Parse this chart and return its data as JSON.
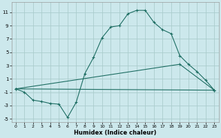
{
  "xlabel": "Humidex (Indice chaleur)",
  "bg_color": "#cce8ec",
  "grid_color": "#aacccc",
  "line_color": "#1a6b60",
  "xlim": [
    -0.5,
    23.5
  ],
  "ylim": [
    -5.5,
    12.5
  ],
  "xticks": [
    0,
    1,
    2,
    3,
    4,
    5,
    6,
    7,
    8,
    9,
    10,
    11,
    12,
    13,
    14,
    15,
    16,
    17,
    18,
    19,
    20,
    21,
    22,
    23
  ],
  "yticks": [
    -5,
    -3,
    -1,
    1,
    3,
    5,
    7,
    9,
    11
  ],
  "line1_x": [
    0,
    1,
    2,
    3,
    4,
    5,
    6,
    7,
    8,
    9,
    10,
    11,
    12,
    13,
    14,
    15,
    16,
    17,
    18,
    19,
    20,
    21,
    22,
    23
  ],
  "line1_y": [
    -0.5,
    -1.0,
    -2.2,
    -2.4,
    -2.7,
    -2.8,
    -4.8,
    -2.5,
    1.8,
    4.2,
    7.2,
    8.8,
    9.0,
    10.8,
    11.3,
    11.3,
    9.5,
    8.4,
    7.8,
    4.5,
    3.2,
    2.1,
    0.8,
    -0.7
  ],
  "line2_x": [
    0,
    19,
    23
  ],
  "line2_y": [
    -0.5,
    3.2,
    -0.7
  ],
  "line3_x": [
    0,
    23
  ],
  "line3_y": [
    -0.5,
    -0.7
  ]
}
